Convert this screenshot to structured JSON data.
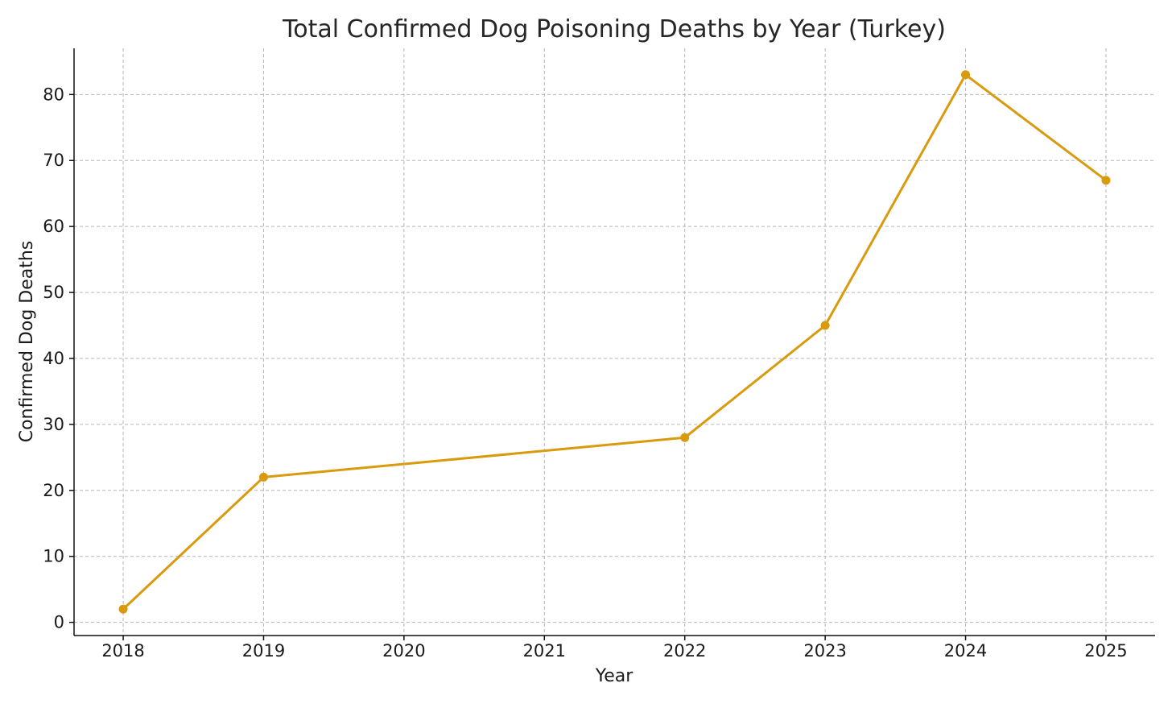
{
  "chart_data": {
    "type": "line",
    "title": "Total Confirmed Dog Poisoning Deaths by Year (Turkey)",
    "xlabel": "Year",
    "ylabel": "Confirmed Dog Deaths",
    "x": [
      2018,
      2019,
      2022,
      2023,
      2024,
      2025
    ],
    "y": [
      2,
      22,
      28,
      45,
      83,
      67
    ],
    "x_ticks": [
      "2018",
      "2019",
      "2020",
      "2021",
      "2022",
      "2023",
      "2024",
      "2025"
    ],
    "y_ticks": [
      "0",
      "10",
      "20",
      "30",
      "40",
      "50",
      "60",
      "70",
      "80"
    ],
    "xlim": [
      2017.65,
      2025.35
    ],
    "ylim": [
      -2,
      87
    ],
    "grid": true,
    "color": "#d99a0e"
  }
}
